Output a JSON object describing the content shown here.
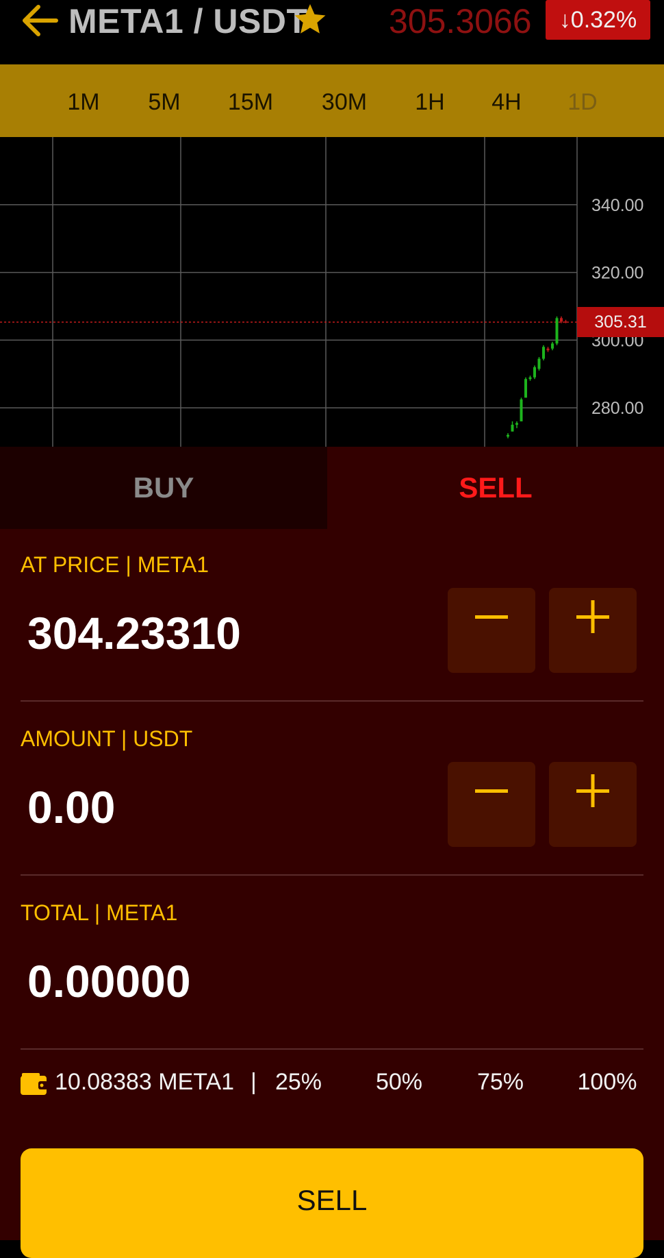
{
  "header": {
    "pair": "META1 / USDT",
    "last_price": "305.3066",
    "change": "↓0.32%"
  },
  "timeframes": [
    {
      "label": "1M",
      "active": false
    },
    {
      "label": "5M",
      "active": false
    },
    {
      "label": "15M",
      "active": false
    },
    {
      "label": "30M",
      "active": false
    },
    {
      "label": "1H",
      "active": false
    },
    {
      "label": "4H",
      "active": false
    },
    {
      "label": "1D",
      "active": true
    }
  ],
  "chart_data": {
    "type": "candlestick",
    "y_ticks": [
      "340.00",
      "320.00",
      "300.00",
      "280.00"
    ],
    "current_price_label": "305.31",
    "current_price": 305.31,
    "ylim": [
      268.5,
      360
    ],
    "grid": true,
    "candles": [
      {
        "open": 271.5,
        "high": 272.5,
        "low": 271.0,
        "close": 272.0
      },
      {
        "open": 273.0,
        "high": 276.0,
        "low": 273.0,
        "close": 275.0
      },
      {
        "open": 275.0,
        "high": 276.0,
        "low": 274.0,
        "close": 275.5
      },
      {
        "open": 276.0,
        "high": 283.0,
        "low": 276.0,
        "close": 282.5
      },
      {
        "open": 283.0,
        "high": 289.0,
        "low": 283.0,
        "close": 288.5
      },
      {
        "open": 288.5,
        "high": 289.5,
        "low": 288.0,
        "close": 289.0
      },
      {
        "open": 289.0,
        "high": 292.5,
        "low": 288.5,
        "close": 292.0
      },
      {
        "open": 291.5,
        "high": 295.0,
        "low": 291.0,
        "close": 294.5
      },
      {
        "open": 294.5,
        "high": 298.5,
        "low": 294.0,
        "close": 298.0
      },
      {
        "open": 297.5,
        "high": 298.0,
        "low": 296.5,
        "close": 297.0
      },
      {
        "open": 297.5,
        "high": 299.5,
        "low": 297.0,
        "close": 299.0
      },
      {
        "open": 299.0,
        "high": 307.0,
        "low": 298.5,
        "close": 306.5
      },
      {
        "open": 306.5,
        "high": 307.0,
        "low": 305.0,
        "close": 305.5
      },
      {
        "open": 305.5,
        "high": 306.0,
        "low": 305.0,
        "close": 305.3
      }
    ]
  },
  "tabs": {
    "buy": "BUY",
    "sell": "SELL"
  },
  "form": {
    "price_label": "AT PRICE | META1",
    "price_value": "304.23310",
    "amount_label": "AMOUNT | USDT",
    "amount_value": "0.00",
    "total_label": "TOTAL | META1",
    "total_value": "0.00000"
  },
  "balance": {
    "text": "10.08383 META1",
    "separator": "|"
  },
  "percent_options": [
    "25%",
    "50%",
    "75%",
    "100%"
  ],
  "submit_label": "SELL",
  "colors": {
    "accent": "#ffbf00",
    "timeframe_bar": "#a87f04",
    "panel_bg": "#330000",
    "sell_red": "#ff1a1a",
    "up_candle": "#1db31d",
    "down_candle": "#c21b1b"
  }
}
